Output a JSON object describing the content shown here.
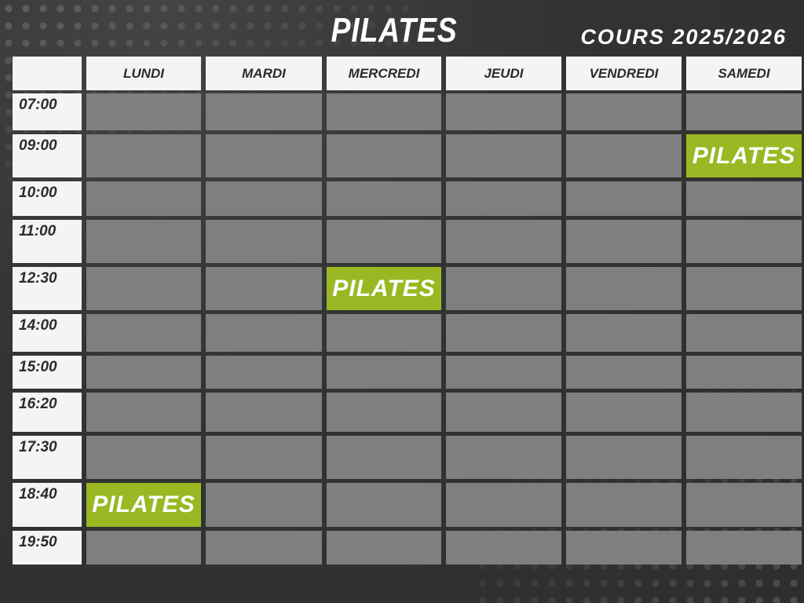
{
  "title": "PILATES",
  "subtitle": "COURS 2025/2026",
  "colors": {
    "background": "#333333",
    "cell_empty": "#7f7f7f",
    "cell_class": "#9ab823",
    "header": "#f4f4f4"
  },
  "days": [
    "LUNDI",
    "MARDI",
    "MERCREDI",
    "JEUDI",
    "VENDREDI",
    "SAMEDI"
  ],
  "rows": [
    {
      "time": "07:00",
      "cells": [
        "",
        "",
        "",
        "",
        "",
        ""
      ]
    },
    {
      "time": "09:00",
      "cells": [
        "",
        "",
        "",
        "",
        "",
        "PILATES"
      ]
    },
    {
      "time": "10:00",
      "cells": [
        "",
        "",
        "",
        "",
        "",
        ""
      ]
    },
    {
      "time": "11:00",
      "cells": [
        "",
        "",
        "",
        "",
        "",
        ""
      ]
    },
    {
      "time": "12:30",
      "cells": [
        "",
        "",
        "PILATES",
        "",
        "",
        ""
      ]
    },
    {
      "time": "14:00",
      "cells": [
        "",
        "",
        "",
        "",
        "",
        ""
      ]
    },
    {
      "time": "15:00",
      "cells": [
        "",
        "",
        "",
        "",
        "",
        ""
      ]
    },
    {
      "time": "16:20",
      "cells": [
        "",
        "",
        "",
        "",
        "",
        ""
      ]
    },
    {
      "time": "17:30",
      "cells": [
        "",
        "",
        "",
        "",
        "",
        ""
      ]
    },
    {
      "time": "18:40",
      "cells": [
        "PILATES",
        "",
        "",
        "",
        "",
        ""
      ]
    },
    {
      "time": "19:50",
      "cells": [
        "",
        "",
        "",
        "",
        "",
        ""
      ]
    }
  ]
}
